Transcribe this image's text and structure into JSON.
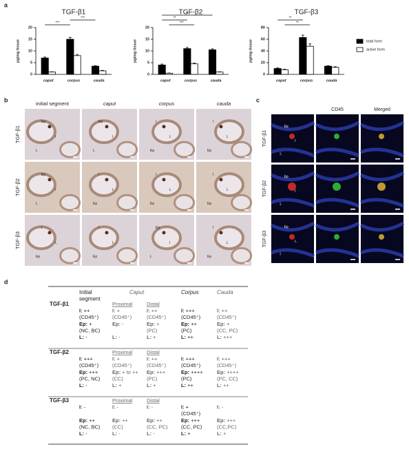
{
  "panel_labels": [
    "a",
    "b",
    "c",
    "d"
  ],
  "chart_data": [
    {
      "type": "bar",
      "title": "TGF-β1",
      "y_label": "pg/mg tissue",
      "categories": [
        "caput",
        "corpus",
        "cauda"
      ],
      "series": [
        {
          "color": "#000000",
          "values": [
            7,
            15,
            3.5
          ],
          "errors": [
            0.4,
            0.8,
            0.2
          ]
        },
        {
          "color": "#ffffff",
          "values": [
            1,
            8,
            1.5
          ],
          "errors": [
            0.1,
            0.5,
            0.2
          ]
        }
      ],
      "ylim": [
        0,
        20
      ],
      "yticks": [
        0,
        5,
        10,
        15,
        20
      ],
      "annotations": [
        "***",
        "***"
      ]
    },
    {
      "type": "bar",
      "title": "TGF-β2",
      "y_label": "pg/mg tissue",
      "categories": [
        "caput",
        "corpus",
        "cauda"
      ],
      "series": [
        {
          "color": "#000000",
          "values": [
            4,
            11,
            10.5
          ],
          "errors": [
            0.4,
            0.5,
            0.4
          ]
        },
        {
          "color": "#ffffff",
          "values": [
            0.5,
            4.5,
            1
          ],
          "errors": [
            0.1,
            0.3,
            0.1
          ]
        }
      ],
      "ylim": [
        0,
        20
      ],
      "yticks": [
        0,
        5,
        10,
        15,
        20
      ],
      "annotations": [
        "#",
        "**",
        "***"
      ]
    },
    {
      "type": "bar",
      "title": "TGF-β3",
      "y_label": "pg/mg tissue",
      "categories": [
        "caput",
        "corpus",
        "cauda"
      ],
      "series": [
        {
          "name": "total form",
          "color": "#000000",
          "values": [
            10,
            63,
            14
          ],
          "errors": [
            1,
            4,
            1
          ]
        },
        {
          "name": "active form",
          "color": "#ffffff",
          "values": [
            8,
            48,
            12
          ],
          "errors": [
            1,
            4,
            1
          ]
        }
      ],
      "ylim": [
        0,
        80
      ],
      "yticks": [
        0,
        20,
        40,
        60,
        80
      ],
      "annotations": [
        "**",
        "**"
      ]
    }
  ],
  "panel_b": {
    "columns": [
      "initial segment",
      "caput",
      "corpus",
      "cauda"
    ],
    "rows": [
      "TGF-β1",
      "TGF-β2",
      "TGF-β3"
    ],
    "labels": [
      [
        [
          "Ep",
          "I",
          "L"
        ],
        [
          "Ep",
          "I",
          "L"
        ],
        [
          "I",
          "L",
          "Ep"
        ],
        [
          "I",
          "L",
          "Ep"
        ]
      ],
      [
        [
          "Ep",
          "I",
          "L"
        ],
        [
          "I",
          "L",
          "Ep"
        ],
        [
          "I",
          "L",
          "Ep"
        ],
        [
          "I",
          "L",
          "Ep"
        ]
      ],
      [
        [
          "I",
          "L",
          "Ep"
        ],
        [
          "I",
          "L",
          "Ep"
        ],
        [
          "Ep",
          "I",
          "L"
        ],
        [
          "I",
          "L",
          "Ep"
        ]
      ]
    ]
  },
  "panel_c": {
    "columns": [
      "CD45",
      "Merged"
    ],
    "rows": [
      "TGF-β1",
      "TGF-β2",
      "TGF-β3"
    ],
    "labels": [
      [
        "Ep",
        "I",
        "L"
      ],
      [
        "Ep",
        "I",
        "L"
      ],
      [
        "Ep",
        "L",
        "I"
      ]
    ]
  },
  "table": {
    "headers": [
      "Initial segment",
      "Caput",
      "Corpus",
      "Cauda"
    ],
    "subheaders": [
      "Proximal",
      "Distal"
    ],
    "rows": [
      {
        "label": "TGF-β1",
        "cells": [
          [
            "I: ++",
            "(CD45⁺)",
            "Ep: +",
            "(NC, BC)",
            "L: -"
          ],
          [
            "I: +",
            "(CD45⁺)",
            "Ep: -",
            null,
            "L: -"
          ],
          [
            "I: ++",
            "(CD45⁺)",
            "Ep: +",
            "(PC)",
            "L: +"
          ],
          [
            "I: +++",
            "(CD45⁺)",
            "Ep: ++",
            "(PC)",
            "L: ++"
          ],
          [
            "I: ++",
            "(CD45⁺)",
            "Ep: +",
            "(CC, PC)",
            "L: +++"
          ]
        ]
      },
      {
        "label": "TGF-β2",
        "cells": [
          [
            "I: +++",
            "(CD45⁺)",
            "Ep: +++",
            "(PC, NC)",
            "L: -"
          ],
          [
            "I: +",
            "(CD45⁺)",
            "Ep: + to ++",
            "(CC)",
            "L: +"
          ],
          [
            "I: ++",
            "(CD45⁺)",
            "Ep: +++",
            "(PC)",
            "L: +"
          ],
          [
            "I: +++",
            "(CD45⁺)",
            "Ep: ++++",
            "(PC)",
            "L: ++"
          ],
          [
            "I: +++",
            "(CD45⁺)",
            "Ep: ++++",
            "(PC, CC)",
            "L: ++"
          ]
        ]
      },
      {
        "label": "TGF-β3",
        "cells": [
          [
            "I: -",
            null,
            "Ep: ++",
            "(NC, BC)",
            "L: -"
          ],
          [
            "I: -",
            null,
            "Ep: ++",
            "(CC)",
            "L: -"
          ],
          [
            "I: -",
            null,
            "Ep: ++",
            "(CC, PC)",
            "L: -"
          ],
          [
            "I: +",
            "(CD45⁺)",
            "Ep: +++",
            "(CC, PC)",
            "L: +"
          ],
          [
            "I: -",
            null,
            "Ep: +++",
            "(CC,PC)",
            "L: +"
          ]
        ]
      }
    ]
  }
}
